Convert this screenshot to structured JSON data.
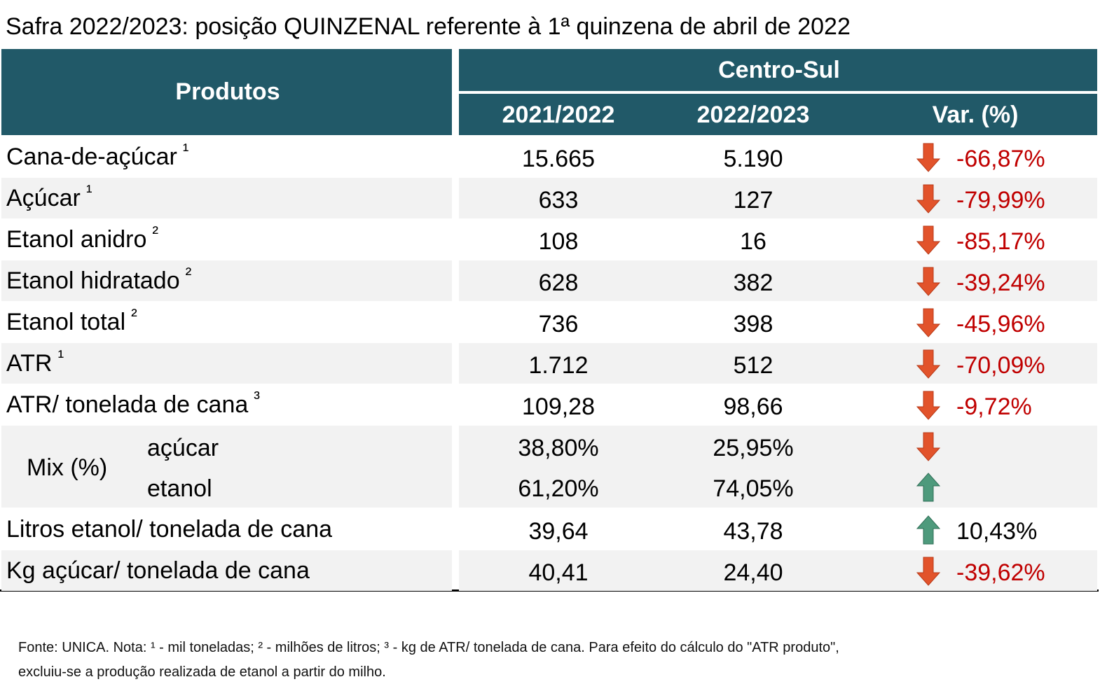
{
  "title": "Safra 2022/2023: posição QUINZENAL referente à 1ª quinzena de abril de 2022",
  "header": {
    "products": "Produtos",
    "region": "Centro-Sul",
    "columns": [
      "2021/2022",
      "2022/2023",
      "Var. (%)"
    ]
  },
  "rows": [
    {
      "label": "Cana-de-açúcar",
      "note": "¹",
      "values": [
        "15.665",
        "5.190"
      ],
      "trend": "down",
      "var": "-66,87%"
    },
    {
      "label": "Açúcar",
      "note": "¹",
      "values": [
        "633",
        "127"
      ],
      "trend": "down",
      "var": "-79,99%"
    },
    {
      "label": "Etanol anidro",
      "note": "²",
      "values": [
        "108",
        "16"
      ],
      "trend": "down",
      "var": "-85,17%"
    },
    {
      "label": "Etanol hidratado",
      "note": "²",
      "values": [
        "628",
        "382"
      ],
      "trend": "down",
      "var": "-39,24%"
    },
    {
      "label": "Etanol total",
      "note": "²",
      "values": [
        "736",
        "398"
      ],
      "trend": "down",
      "var": "-45,96%"
    },
    {
      "label": "ATR",
      "note": "¹",
      "values": [
        "1.712",
        "512"
      ],
      "trend": "down",
      "var": "-70,09%"
    },
    {
      "label": "ATR/ tonelada de cana",
      "note": "³",
      "values": [
        "109,28",
        "98,66"
      ],
      "trend": "down",
      "var": "-9,72%"
    }
  ],
  "mix": {
    "label": "Mix (%)",
    "items": [
      {
        "label": "açúcar",
        "values": [
          "38,80%",
          "25,95%"
        ],
        "trend": "down"
      },
      {
        "label": "etanol",
        "values": [
          "61,20%",
          "74,05%"
        ],
        "trend": "up"
      }
    ]
  },
  "rows_after": [
    {
      "label": "Litros etanol/ tonelada de cana",
      "values": [
        "39,64",
        "43,78"
      ],
      "trend": "up",
      "var": "10,43%"
    },
    {
      "label": "Kg açúcar/ tonelada de cana",
      "values": [
        "40,41",
        "24,40"
      ],
      "trend": "down",
      "var": "-39,62%"
    }
  ],
  "footnote": [
    "Fonte: UNICA. Nota: ¹ - mil toneladas; ² - milhões de litros; ³ - kg de ATR/ tonelada de cana. Para efeito do cálculo do \"ATR produto\",",
    "excluiu-se a produção realizada de etanol a partir do milho."
  ]
}
